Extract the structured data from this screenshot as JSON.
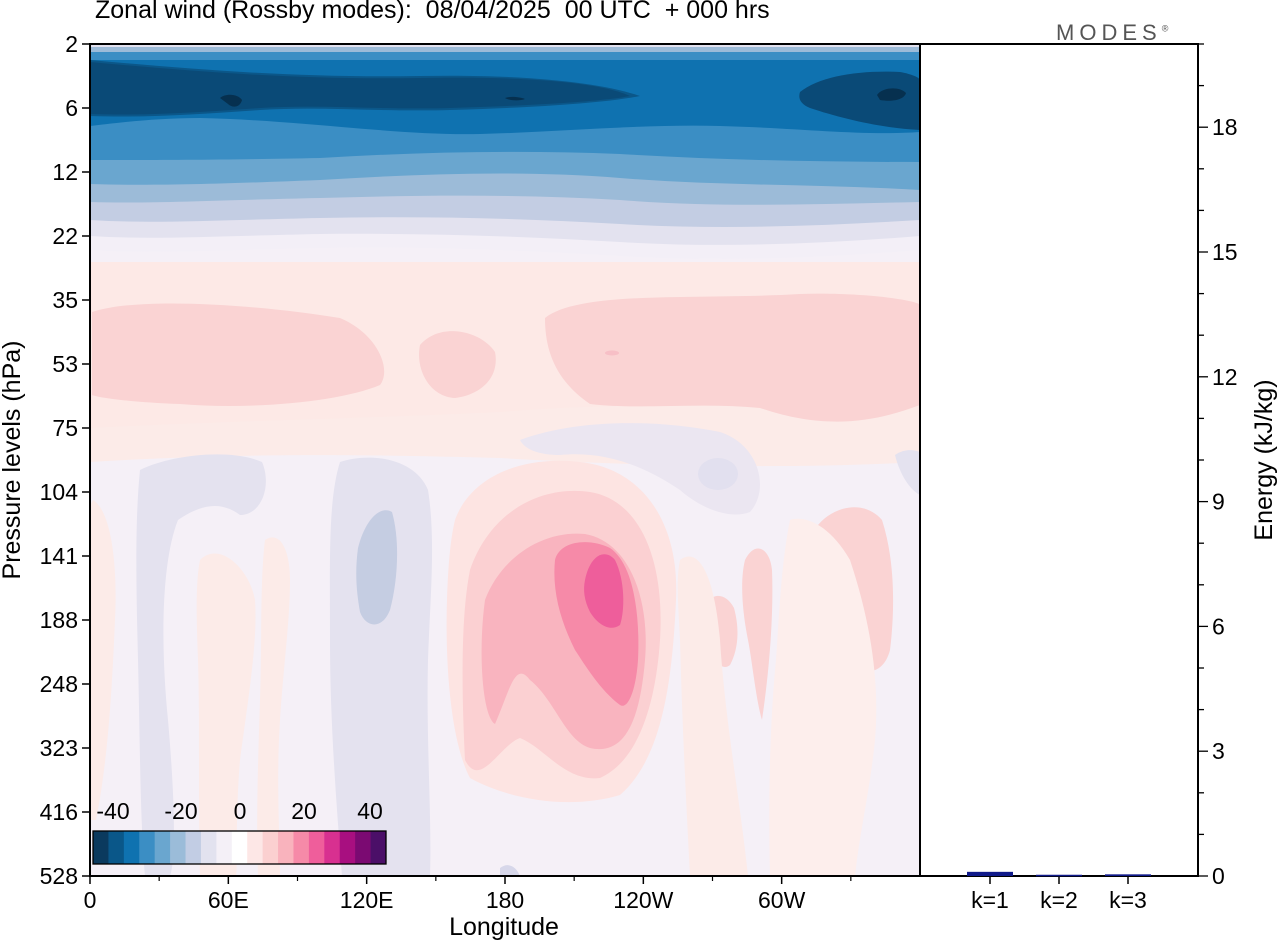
{
  "title": "Zonal wind (Rossby modes):  08/04/2025  00 UTC  + 000 hrs",
  "logo": "MODES",
  "logo_mark": "®",
  "chart_data": [
    {
      "type": "heatmap",
      "title": "Zonal wind (Rossby modes):  08/04/2025  00 UTC  + 000 hrs",
      "xlabel": "Longitude",
      "ylabel": "Pressure levels (hPa)",
      "x_tick_labels": [
        "0",
        "60E",
        "120E",
        "180",
        "120W",
        "60W"
      ],
      "x_ticks_deg": [
        0,
        60,
        120,
        180,
        240,
        300
      ],
      "xlim": [
        0,
        360
      ],
      "y_tick_labels": [
        "2",
        "6",
        "12",
        "22",
        "35",
        "53",
        "75",
        "104",
        "141",
        "188",
        "248",
        "323",
        "416",
        "528"
      ],
      "colorbar_labels": [
        "-40",
        "-20",
        "0",
        "20",
        "40"
      ],
      "colorbar_colors": [
        "#0b3a5e",
        "#0a5789",
        "#0f72b0",
        "#3b8ec4",
        "#6aa6cf",
        "#9bbcd9",
        "#c2cde4",
        "#e2e2ef",
        "#f4f0f7",
        "#ffffff",
        "#fde7e6",
        "#fbd0d0",
        "#f9b3bd",
        "#f68aa8",
        "#ef5e9b",
        "#d83090",
        "#a80f80",
        "#7b0a72",
        "#4b0f68"
      ],
      "zonal_bands": [
        {
          "from_level": "2",
          "to_level": "6",
          "value": -40
        },
        {
          "from_level": "6",
          "to_level": "12",
          "value": -35
        },
        {
          "from_level": "12",
          "to_level": "22",
          "value": -20
        },
        {
          "from_level": "22",
          "to_level": "35",
          "value": -3
        },
        {
          "from_level": "35",
          "to_level": "75",
          "value": 5
        },
        {
          "from_level": "75",
          "to_level": "528",
          "value": 0
        }
      ],
      "features": [
        {
          "lon": 110,
          "level": "75",
          "value": -10
        },
        {
          "lon": 250,
          "level": "53",
          "value": 10
        },
        {
          "lon": 210,
          "level": "141",
          "value": 25
        },
        {
          "lon": 228,
          "level": "160",
          "value": 30
        },
        {
          "lon": 270,
          "level": "140",
          "value": 10
        },
        {
          "lon": 330,
          "level": "150",
          "value": 8
        }
      ]
    },
    {
      "type": "bar",
      "categories": [
        "k=1",
        "k=2",
        "k=3"
      ],
      "values": [
        0.1,
        0.03,
        0.04
      ],
      "ylabel": "Energy (kJ/kg)",
      "ylim": [
        0,
        20
      ],
      "y_tick_labels": [
        "0",
        "3",
        "6",
        "9",
        "12",
        "15",
        "18"
      ],
      "colors": {
        "bar": "#101a8a"
      }
    }
  ]
}
